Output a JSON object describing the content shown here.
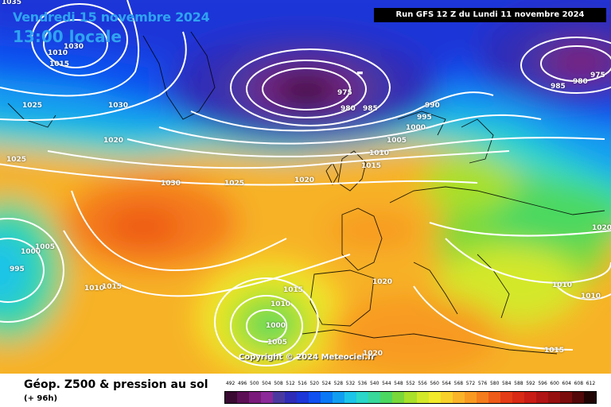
{
  "header": {
    "date": "Vendredi 15 novembre 2024",
    "time": "13:00 locale",
    "run": "Run GFS 12 Z du Lundi 11 novembre 2024"
  },
  "footer": {
    "product": "Géop. Z500 & pression au sol",
    "step": "(+ 96h)",
    "copyright": "Copyright © 2024 Meteociel.fr"
  },
  "legend": {
    "values": [
      "492",
      "496",
      "500",
      "504",
      "508",
      "512",
      "516",
      "520",
      "524",
      "528",
      "532",
      "536",
      "540",
      "544",
      "548",
      "552",
      "556",
      "560",
      "564",
      "568",
      "572",
      "576",
      "580",
      "584",
      "588",
      "592",
      "596",
      "600",
      "604",
      "608",
      "612"
    ],
    "colors": [
      "#3a0a32",
      "#5c0f55",
      "#7a1a7a",
      "#8c2a9a",
      "#4a3aa0",
      "#2f2cb8",
      "#1c36d8",
      "#1050f0",
      "#0a78f5",
      "#129ef0",
      "#1cc4e8",
      "#2ad7c8",
      "#38d89a",
      "#4cd860",
      "#7ad83a",
      "#a8e02a",
      "#d4e82a",
      "#f2ea2a",
      "#f8d22a",
      "#fab42a",
      "#f89a22",
      "#f47c1c",
      "#ee5a18",
      "#e43c16",
      "#d82a14",
      "#c81c14",
      "#b01414",
      "#961010",
      "#7a0c0c",
      "#520808",
      "#200404"
    ]
  },
  "pressure_labels": {
    "l1035": "1035",
    "l1030a": "1030",
    "l1010a": "1010",
    "l1015a": "1015",
    "l1025a": "1025",
    "l1030b": "1030",
    "l1020a": "1020",
    "l1025b": "1025",
    "l1030c": "1030",
    "l1025c": "1025",
    "l975a": "975",
    "l980a": "980",
    "l985a": "985",
    "l990": "990",
    "l995a": "995",
    "l1000a": "1000",
    "l1005a": "1005",
    "l1010b": "1010",
    "l1015b": "1015",
    "l1020b": "1020",
    "l985b": "985",
    "l980b": "980",
    "l975b": "975",
    "l1000b": "1000",
    "l1005b": "1005",
    "l995b": "995",
    "l1010c": "1010",
    "l1015c": "1015",
    "l1015d": "1015",
    "l1010d": "1010",
    "l1000c": "1000",
    "l1005c": "1005",
    "l1020c": "1020",
    "l1020d": "1020",
    "l1020e": "1020",
    "l1010e": "1010",
    "l1010f": "1010",
    "l1015e": "1015"
  }
}
